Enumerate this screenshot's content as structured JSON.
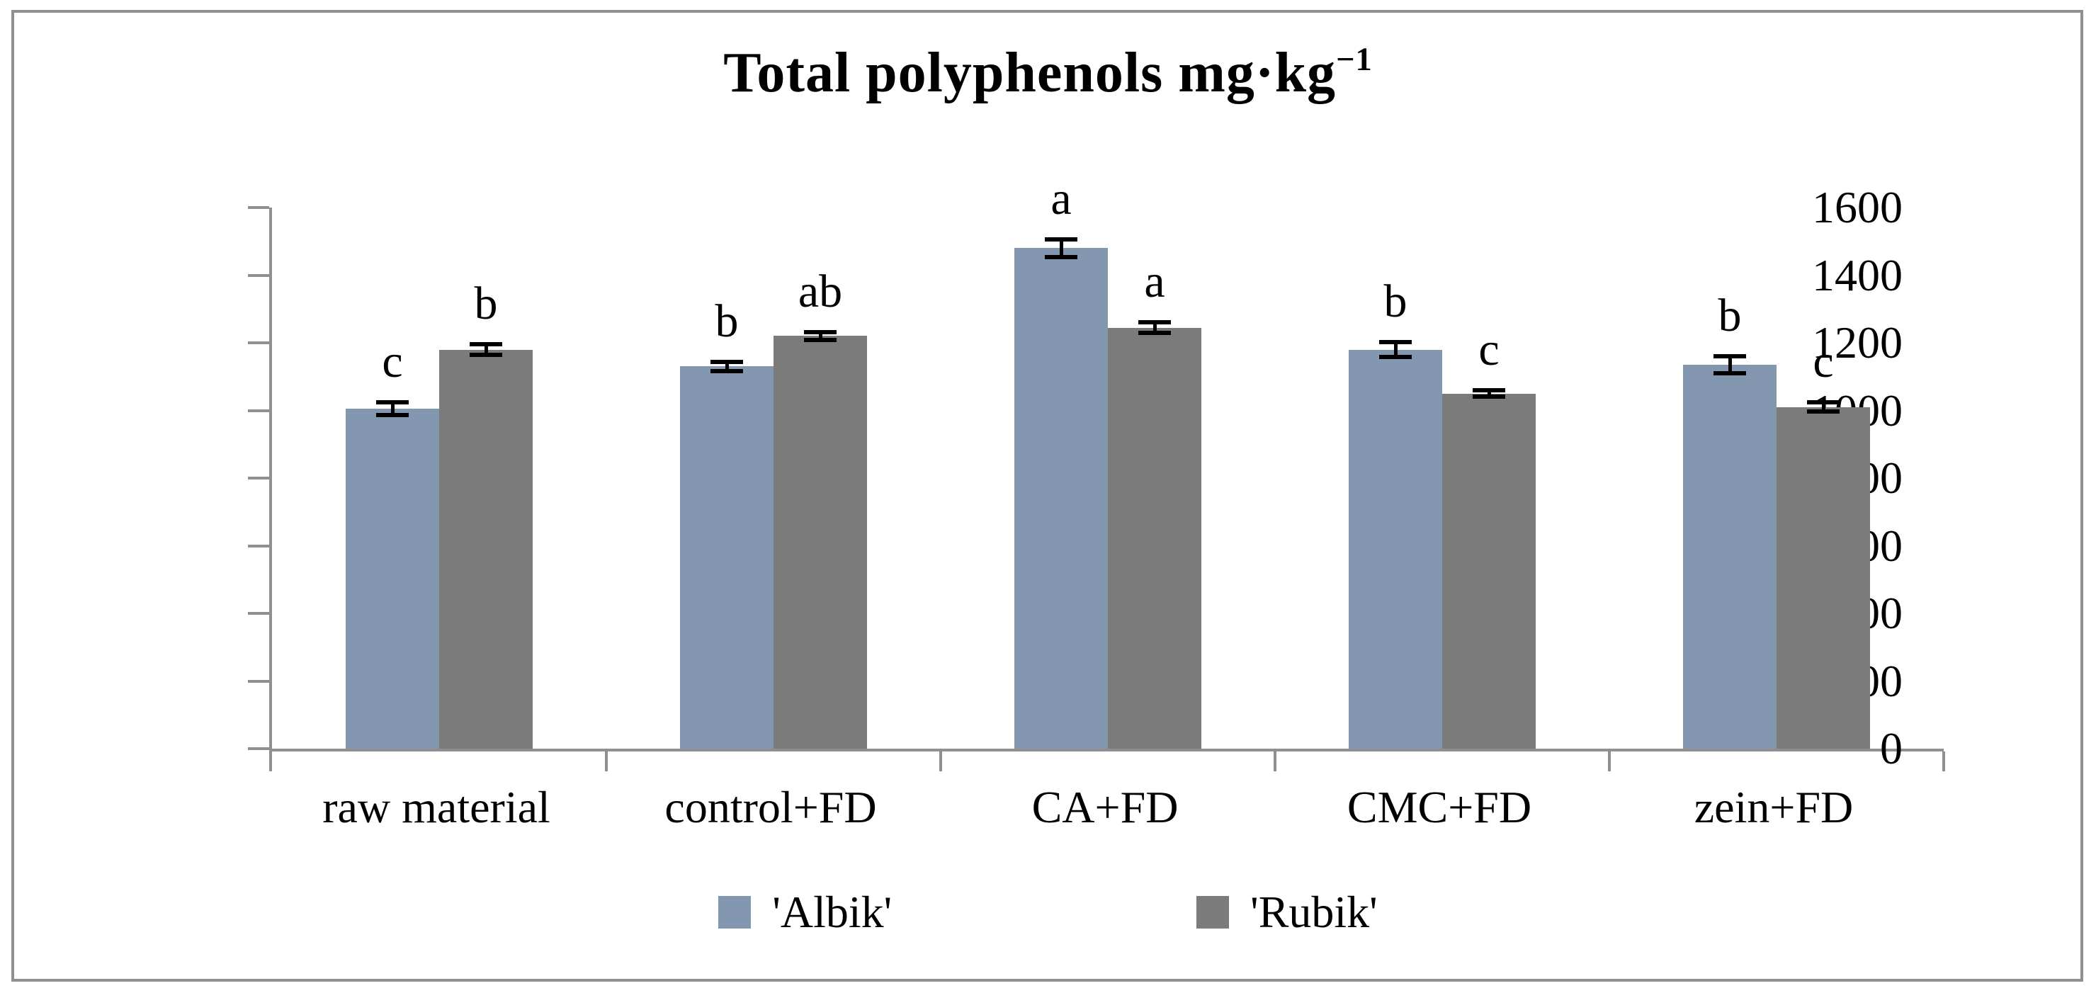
{
  "frame": {
    "border_color": "#8f8f8f"
  },
  "chart_data": {
    "type": "bar",
    "title": "Total polyphenols mg·kg⁻¹",
    "title_main": "Total polyphenols mg·kg",
    "title_superscript": "−1",
    "categories": [
      "raw material",
      "control+FD",
      "CA+FD",
      "CMC+FD",
      "zein+FD"
    ],
    "series": [
      {
        "name": "'Albik'",
        "color": "#8497B0",
        "values": [
          1005,
          1130,
          1480,
          1180,
          1135
        ],
        "errors": [
          15,
          10,
          22,
          18,
          20
        ],
        "letters": [
          "c",
          "b",
          "a",
          "b",
          "b"
        ]
      },
      {
        "name": "'Rubik'",
        "color": "#7B7B7B",
        "values": [
          1180,
          1220,
          1245,
          1050,
          1010
        ],
        "errors": [
          12,
          8,
          12,
          6,
          9
        ],
        "letters": [
          "b",
          "ab",
          "a",
          "c",
          "c"
        ]
      }
    ],
    "y_axis": {
      "min": 0,
      "max": 1600,
      "step": 200,
      "tick_labels": [
        "0",
        "200",
        "400",
        "600",
        "800",
        "1000",
        "1200",
        "1400",
        "1600"
      ]
    },
    "x_axis": {
      "labels": [
        "raw material",
        "control+FD",
        "CA+FD",
        "CMC+FD",
        "zein+FD"
      ]
    },
    "legend": {
      "position": "bottom",
      "entries": [
        "'Albik'",
        "'Rubik'"
      ]
    },
    "grid": false,
    "error_bars": true,
    "bar_letter_annotations": true,
    "axis_color": "#8f8f8f",
    "error_bar_color": "#000000",
    "ylim": [
      0,
      1600
    ]
  }
}
